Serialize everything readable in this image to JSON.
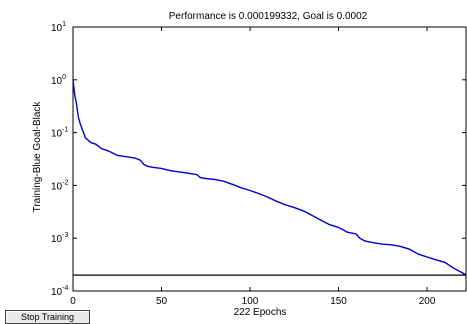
{
  "chart_data": {
    "type": "line",
    "title": "Performance is 0.000199332, Goal is 0.0002",
    "xlabel": "222 Epochs",
    "ylabel": "Training-Blue  Goal-Black",
    "xlim": [
      0,
      222
    ],
    "ylim": [
      0.0001,
      10
    ],
    "yscale": "log",
    "grid": false,
    "x_ticks": [
      "0",
      "50",
      "100",
      "150",
      "200"
    ],
    "y_ticks": [
      {
        "base": "10",
        "exp": "1"
      },
      {
        "base": "10",
        "exp": "0"
      },
      {
        "base": "10",
        "exp": "-1"
      },
      {
        "base": "10",
        "exp": "-2"
      },
      {
        "base": "10",
        "exp": "-3"
      },
      {
        "base": "10",
        "exp": "-4"
      }
    ],
    "series": [
      {
        "role": "training",
        "color": "#0000cc",
        "x": [
          0,
          1,
          2,
          3,
          4,
          5,
          7,
          10,
          13,
          16,
          20,
          25,
          30,
          35,
          38,
          40,
          42,
          45,
          50,
          55,
          60,
          65,
          70,
          72,
          75,
          80,
          85,
          90,
          95,
          100,
          105,
          110,
          115,
          120,
          125,
          130,
          135,
          140,
          145,
          150,
          155,
          160,
          162,
          165,
          170,
          175,
          180,
          185,
          190,
          195,
          200,
          205,
          210,
          215,
          218,
          220,
          222
        ],
        "values": [
          1.0,
          0.5,
          0.35,
          0.2,
          0.15,
          0.12,
          0.08,
          0.065,
          0.06,
          0.05,
          0.045,
          0.037,
          0.035,
          0.033,
          0.03,
          0.025,
          0.023,
          0.022,
          0.021,
          0.019,
          0.018,
          0.017,
          0.016,
          0.014,
          0.0135,
          0.013,
          0.012,
          0.0105,
          0.009,
          0.008,
          0.007,
          0.006,
          0.005,
          0.0043,
          0.0038,
          0.0033,
          0.0027,
          0.0022,
          0.0018,
          0.0016,
          0.0013,
          0.0012,
          0.001,
          0.00088,
          0.00082,
          0.00077,
          0.00075,
          0.0007,
          0.00062,
          0.0005,
          0.00044,
          0.00039,
          0.00035,
          0.00027,
          0.00024,
          0.00022,
          0.000199
        ]
      },
      {
        "role": "goal",
        "color": "#000000",
        "x": [
          0,
          222
        ],
        "values": [
          0.0002,
          0.0002
        ]
      }
    ]
  },
  "controls": {
    "stop_label": "Stop Training"
  }
}
